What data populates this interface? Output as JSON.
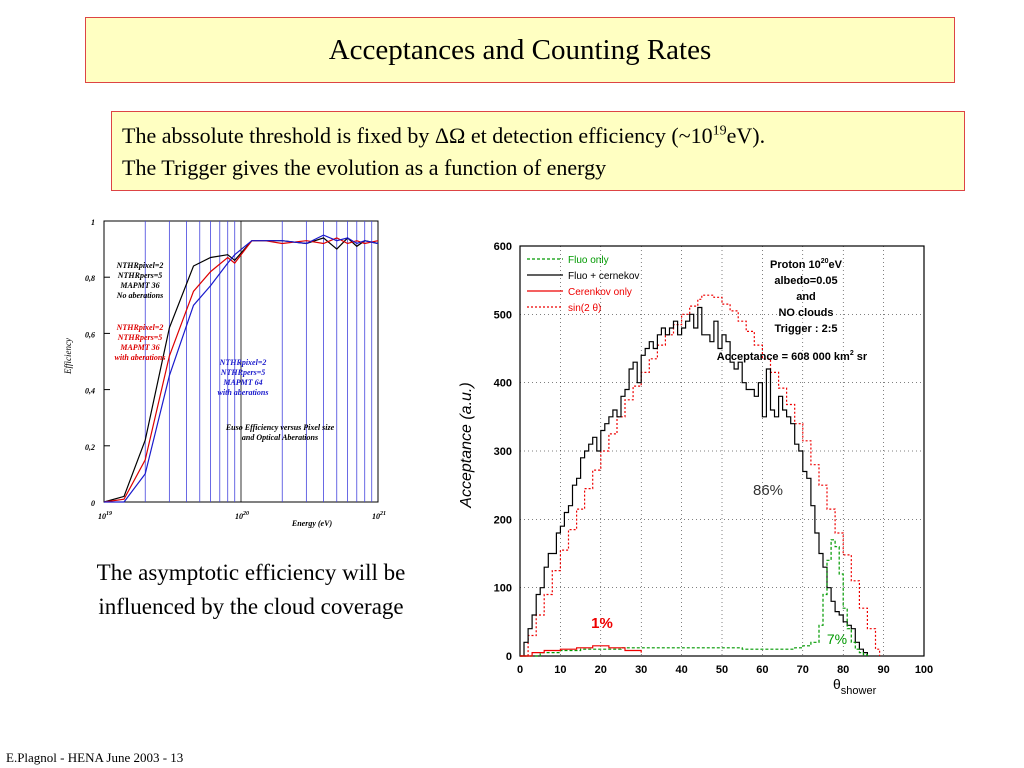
{
  "slide": {
    "title": "Acceptances and Counting Rates",
    "info_line1": "The abssolute threshold is fixed by ΔΩ et detection efficiency (~10",
    "info_exp": "19",
    "info_line1_end": "eV).",
    "info_line2": "The Trigger gives the evolution as a function of energy",
    "caption_line1": "The asymptotic efficiency will be",
    "caption_line2": "influenced by the cloud coverage",
    "footer": "E.Plagnol - HENA June 2003 - 13"
  },
  "chart_data": [
    {
      "type": "line",
      "xscale": "log",
      "xlabel": "Energy (eV)",
      "ylabel": "Efficiency",
      "xlim": [
        1e+19,
        1e+21
      ],
      "ylim": [
        0,
        1
      ],
      "x_tick_labels": [
        {
          "base": "10",
          "exp": "19"
        },
        {
          "base": "10",
          "exp": "20"
        },
        {
          "base": "10",
          "exp": "21"
        }
      ],
      "y_tick_labels": [
        "0",
        "0,2",
        "0,4",
        "0,6",
        "0,8",
        "1"
      ],
      "annotations": [
        {
          "lines": [
            "NTHRpixel=2",
            "NTHRpers=5",
            "MAPMT 36",
            "No aberations"
          ],
          "color": "#000000"
        },
        {
          "lines": [
            "NTHRpixel=2",
            "NTHRpers=5",
            "MAPMT 36",
            "with aberations"
          ],
          "color": "#dd0000"
        },
        {
          "lines": [
            "NTHRpixel=2",
            "NTHRpers=5",
            "MAPMT 64",
            "with aberations"
          ],
          "color": "#1a1acc"
        },
        {
          "lines": [
            "Euso Efficiency versus Pixel size",
            "and Optical Aberations"
          ],
          "color": "#000000"
        }
      ],
      "series": [
        {
          "color": "#000000",
          "x": [
            1e+19,
            1.4e+19,
            2e+19,
            3e+19,
            4.5e+19,
            6e+19,
            8e+19,
            9e+19,
            1.2e+20,
            1.5e+20,
            2e+20,
            3e+20,
            4e+20,
            5e+20,
            6e+20,
            7e+20,
            8e+20,
            1e+21
          ],
          "y": [
            0.0,
            0.02,
            0.22,
            0.62,
            0.84,
            0.87,
            0.88,
            0.86,
            0.93,
            0.93,
            0.93,
            0.92,
            0.94,
            0.9,
            0.94,
            0.91,
            0.93,
            0.92
          ]
        },
        {
          "color": "#dd0000",
          "x": [
            1e+19,
            1.4e+19,
            2e+19,
            3e+19,
            4.5e+19,
            6e+19,
            8e+19,
            9e+19,
            1.2e+20,
            1.5e+20,
            2e+20,
            3e+20,
            4e+20,
            5e+20,
            6e+20,
            7e+20,
            8e+20,
            1e+21
          ],
          "y": [
            0.0,
            0.01,
            0.15,
            0.52,
            0.75,
            0.82,
            0.87,
            0.85,
            0.93,
            0.93,
            0.92,
            0.93,
            0.92,
            0.94,
            0.92,
            0.93,
            0.92,
            0.93
          ]
        },
        {
          "color": "#1a1acc",
          "x": [
            1e+19,
            1.4e+19,
            2e+19,
            3e+19,
            4.5e+19,
            6e+19,
            8e+19,
            9e+19,
            1.2e+20,
            1.5e+20,
            2e+20,
            3e+20,
            4e+20,
            5e+20,
            6e+20,
            7e+20,
            8e+20,
            1e+21
          ],
          "y": [
            0.0,
            0.0,
            0.1,
            0.45,
            0.7,
            0.77,
            0.85,
            0.88,
            0.93,
            0.93,
            0.93,
            0.92,
            0.95,
            0.93,
            0.94,
            0.92,
            0.93,
            0.92
          ]
        }
      ]
    },
    {
      "type": "line",
      "xlabel": "θ",
      "xlabel_sub": "shower",
      "ylabel": "Acceptance (a.u.)",
      "xlim": [
        0,
        100
      ],
      "ylim": [
        0,
        600
      ],
      "x_ticks": [
        "0",
        "10",
        "20",
        "30",
        "40",
        "50",
        "60",
        "70",
        "80",
        "90",
        "100"
      ],
      "y_ticks": [
        "0",
        "100",
        "200",
        "300",
        "400",
        "500",
        "600"
      ],
      "legend": [
        {
          "label": "Fluo only",
          "color": "#009900",
          "dash": "3,2"
        },
        {
          "label": "Fluo + cernekov",
          "color": "#000000",
          "dash": ""
        },
        {
          "label": "Cerenkov only",
          "color": "#ee0000",
          "dash": ""
        },
        {
          "label": "sin(2 θ)",
          "color": "#ee0000",
          "dash": "2,2"
        }
      ],
      "info": [
        "Proton 10",
        "20",
        "eV",
        "albedo=0.05",
        "and",
        "NO clouds",
        "Trigger : 2:5"
      ],
      "acceptance": [
        "Acceptance = 608 000 km",
        "2",
        " sr"
      ],
      "labels": {
        "pct_main": "86%",
        "pct_cer": "1%",
        "pct_fluo": "7%"
      },
      "series": [
        {
          "name": "sin(2 θ)",
          "color": "#ee0000",
          "dash": "2,2",
          "x": [
            0,
            2,
            4,
            6,
            8,
            10,
            12,
            14,
            16,
            18,
            20,
            22,
            24,
            26,
            28,
            30,
            32,
            34,
            36,
            38,
            40,
            42,
            44,
            45,
            46,
            48,
            50,
            52,
            54,
            56,
            58,
            60,
            62,
            64,
            66,
            68,
            70,
            72,
            74,
            76,
            78,
            80,
            82,
            84,
            86,
            88,
            89
          ],
          "y": [
            0,
            30,
            60,
            90,
            125,
            155,
            185,
            215,
            245,
            272,
            300,
            325,
            350,
            375,
            395,
            415,
            435,
            455,
            470,
            485,
            500,
            512,
            522,
            528,
            528,
            525,
            515,
            505,
            490,
            475,
            455,
            435,
            415,
            392,
            368,
            340,
            315,
            280,
            250,
            215,
            180,
            148,
            110,
            70,
            40,
            10,
            0
          ]
        },
        {
          "name": "Fluo + cernekov",
          "color": "#000000",
          "dash": "",
          "x": [
            0,
            1,
            2,
            3,
            4,
            5,
            6,
            7,
            8,
            9,
            10,
            11,
            12,
            13,
            14,
            15,
            16,
            17,
            18,
            19,
            20,
            21,
            22,
            23,
            24,
            25,
            26,
            27,
            28,
            29,
            30,
            31,
            32,
            33,
            34,
            35,
            36,
            37,
            38,
            39,
            40,
            41,
            42,
            43,
            44,
            45,
            46,
            47,
            48,
            49,
            50,
            51,
            52,
            53,
            54,
            55,
            56,
            57,
            58,
            59,
            60,
            61,
            62,
            63,
            64,
            65,
            66,
            67,
            68,
            69,
            70,
            71,
            72,
            73,
            74,
            75,
            76,
            77,
            78,
            79,
            80,
            81,
            82,
            83,
            84,
            85,
            86
          ],
          "y": [
            0,
            20,
            40,
            60,
            90,
            100,
            130,
            150,
            150,
            180,
            190,
            210,
            220,
            250,
            260,
            290,
            300,
            310,
            320,
            300,
            330,
            340,
            350,
            360,
            350,
            380,
            390,
            420,
            430,
            400,
            440,
            450,
            460,
            450,
            470,
            480,
            470,
            480,
            490,
            470,
            480,
            490,
            500,
            480,
            510,
            470,
            470,
            460,
            490,
            450,
            470,
            460,
            430,
            420,
            430,
            400,
            390,
            390,
            380,
            400,
            350,
            420,
            360,
            350,
            380,
            360,
            350,
            340,
            310,
            300,
            270,
            260,
            220,
            180,
            150,
            130,
            100,
            80,
            65,
            60,
            50,
            45,
            40,
            20,
            10,
            5,
            0
          ]
        },
        {
          "name": "Fluo only",
          "color": "#009900",
          "dash": "3,2",
          "x": [
            0,
            5,
            10,
            15,
            20,
            25,
            30,
            35,
            40,
            45,
            50,
            55,
            60,
            65,
            68,
            70,
            72,
            74,
            75,
            76,
            77,
            78,
            79,
            80,
            81,
            82,
            83,
            84,
            85,
            86
          ],
          "y": [
            0,
            5,
            8,
            10,
            10,
            12,
            12,
            12,
            12,
            12,
            12,
            10,
            10,
            10,
            12,
            15,
            20,
            45,
            90,
            140,
            170,
            160,
            120,
            70,
            40,
            20,
            10,
            5,
            2,
            0
          ]
        },
        {
          "name": "Cerenkov only",
          "color": "#ee0000",
          "dash": "",
          "x": [
            0,
            3,
            6,
            10,
            14,
            18,
            22,
            26,
            30
          ],
          "y": [
            0,
            5,
            8,
            10,
            12,
            15,
            12,
            8,
            5
          ]
        }
      ]
    }
  ]
}
